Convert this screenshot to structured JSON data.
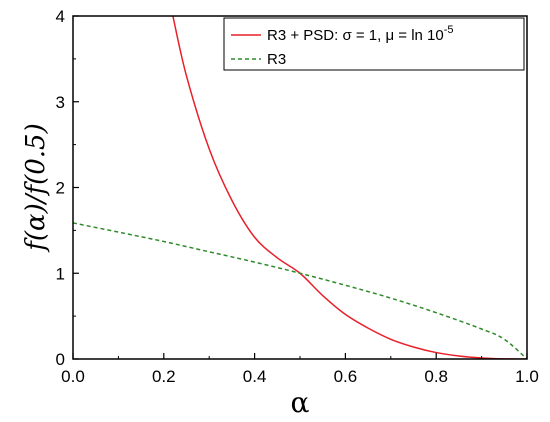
{
  "chart_data": {
    "type": "line",
    "title": "",
    "xlabel": "α",
    "ylabel": "f(α)/f(0.5)",
    "xlim": [
      0.0,
      1.0
    ],
    "ylim": [
      0,
      4
    ],
    "x_ticks": [
      "0.0",
      "0.2",
      "0.4",
      "0.6",
      "0.8",
      "1.0"
    ],
    "y_ticks": [
      "0",
      "1",
      "2",
      "3",
      "4"
    ],
    "grid": false,
    "legend_position": "top-right",
    "series": [
      {
        "name": "R3 + PSD: σ = 1, μ = ln 10",
        "name_superscript": "-5",
        "color": "#e8202a",
        "dash": "solid",
        "x": [
          0.22,
          0.25,
          0.3,
          0.35,
          0.4,
          0.45,
          0.5,
          0.55,
          0.6,
          0.65,
          0.7,
          0.75,
          0.8,
          0.85,
          0.9,
          0.95,
          1.0
        ],
        "y": [
          4.0,
          3.3,
          2.45,
          1.85,
          1.42,
          1.18,
          1.0,
          0.74,
          0.52,
          0.36,
          0.23,
          0.14,
          0.075,
          0.035,
          0.012,
          0.002,
          0.0
        ]
      },
      {
        "name": "R3",
        "color": "#2f8a2a",
        "dash": "dashed",
        "x": [
          0.0,
          0.1,
          0.2,
          0.3,
          0.4,
          0.5,
          0.6,
          0.7,
          0.8,
          0.9,
          0.95,
          1.0
        ],
        "y": [
          1.587,
          1.48,
          1.37,
          1.25,
          1.13,
          1.0,
          0.86,
          0.71,
          0.54,
          0.35,
          0.23,
          0.0
        ]
      }
    ]
  }
}
